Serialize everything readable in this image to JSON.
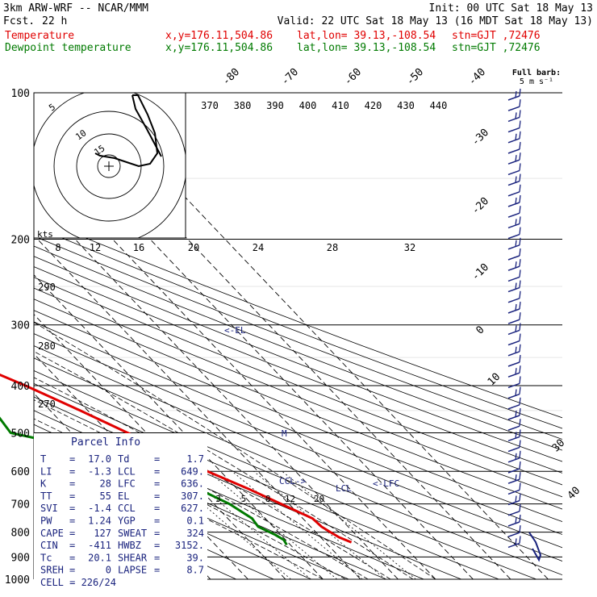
{
  "header": {
    "model": "3km ARW-WRF -- NCAR/MMM",
    "init": "Init: 00 UTC Sat 18 May 13",
    "fcst_label": "Fcst.",
    "fcst_hours": "22 h",
    "valid": "Valid: 22 UTC Sat 18 May 13 (16 MDT Sat 18 May 13)",
    "series1_label": "Temperature",
    "series2_label": "Dewpoint temperature",
    "xy": "x,y=176.11,504.86",
    "latlon": "lat,lon= 39.13,-108.54",
    "stn": "stn=GJT ,72476"
  },
  "barb_legend": {
    "line1": "Full barb:",
    "line2": "5 m s⁻¹"
  },
  "hodograph": {
    "kts": "kts",
    "ring_labels": [
      "5",
      "10",
      "15"
    ]
  },
  "parcel_info": {
    "title": "Parcel Info",
    "rows": [
      {
        "l": "T",
        "lv": "17.0",
        "r": "Td",
        "rv": "1.7"
      },
      {
        "l": "LI",
        "lv": "-1.3",
        "r": "LCL",
        "rv": "649."
      },
      {
        "l": "K",
        "lv": "28",
        "r": "LFC",
        "rv": "636."
      },
      {
        "l": "TT",
        "lv": "55",
        "r": "EL",
        "rv": "307."
      },
      {
        "l": "SVI",
        "lv": "-1.4",
        "r": "CCL",
        "rv": "627."
      },
      {
        "l": "PW",
        "lv": "1.24",
        "r": "YGP",
        "rv": "0.1"
      },
      {
        "l": "CAPE",
        "lv": "127",
        "r": "SWEAT",
        "rv": "324"
      },
      {
        "l": "CIN",
        "lv": "-411",
        "r": "HWBZ",
        "rv": "3152."
      },
      {
        "l": "Tc",
        "lv": "20.1",
        "r": "SHEAR",
        "rv": "39."
      },
      {
        "l": "SREH",
        "lv": "0",
        "r": "LAPSE",
        "rv": "8.7"
      }
    ],
    "cell": "CELL = 226/24"
  },
  "levels": {
    "el": "<-EL",
    "lfc": "<-LFC",
    "lcl": "LCL",
    "ccl": "CCL->",
    "m": "M"
  },
  "chart_data": {
    "type": "line",
    "title": "3km ARW-WRF -- NCAR/MMM",
    "ylabel": "",
    "xlabel": "",
    "y_scale": "log-pressure",
    "ylim": [
      1000,
      100
    ],
    "pressure_ticks": [
      "100",
      "200",
      "300",
      "400",
      "500",
      "600",
      "700",
      "800",
      "900",
      "1000"
    ],
    "isotherm_labels": [
      "-80",
      "-70",
      "-60",
      "-50",
      "-40",
      "-30",
      "-20",
      "-10",
      "0",
      "10",
      "30",
      "40"
    ],
    "theta_labels": [
      "370",
      "380",
      "390",
      "400",
      "410",
      "420",
      "430",
      "440"
    ],
    "theta_left_labels": [
      "290",
      "280",
      "270"
    ],
    "wind_speed_labels": [
      "8",
      "12",
      "16",
      "20",
      "24",
      "28",
      "32"
    ],
    "mixing_ratio_labels": [
      "2",
      "3",
      "5",
      "8",
      "12",
      "20"
    ],
    "series": [
      {
        "name": "Temperature",
        "color": "#e00000",
        "points": [
          [
            100,
            -50.2
          ],
          [
            110,
            -49.4
          ],
          [
            125,
            -47.4
          ],
          [
            140,
            -46.4
          ],
          [
            155,
            -46.8
          ],
          [
            170,
            -48.9
          ],
          [
            185,
            -51.8
          ],
          [
            200,
            -54.2
          ],
          [
            220,
            -57.2
          ],
          [
            240,
            -58.4
          ],
          [
            260,
            -58.3
          ],
          [
            280,
            -54.7
          ],
          [
            300,
            -52.0
          ],
          [
            320,
            -47.8
          ],
          [
            340,
            -43.1
          ],
          [
            370,
            -36.5
          ],
          [
            400,
            -30.3
          ],
          [
            450,
            -22.0
          ],
          [
            500,
            -15.0
          ],
          [
            550,
            -9.0
          ],
          [
            600,
            -3.5
          ],
          [
            650,
            2.8
          ],
          [
            700,
            7.9
          ],
          [
            750,
            12.6
          ],
          [
            780,
            12.9
          ],
          [
            800,
            13.9
          ],
          [
            820,
            14.9
          ],
          [
            840,
            16.9
          ]
        ]
      },
      {
        "name": "Dewpoint temperature",
        "color": "#007a00",
        "points": [
          [
            100,
            -79.3
          ],
          [
            120,
            -73.9
          ],
          [
            140,
            -72.4
          ],
          [
            160,
            -74.3
          ],
          [
            180,
            -76.4
          ],
          [
            200,
            -78.3
          ],
          [
            210,
            -78.5
          ],
          [
            230,
            -73.4
          ],
          [
            260,
            -64.7
          ],
          [
            300,
            -60.3
          ],
          [
            340,
            -51.7
          ],
          [
            380,
            -41.7
          ],
          [
            400,
            -41.7
          ],
          [
            450,
            -45.0
          ],
          [
            500,
            -46.2
          ],
          [
            550,
            -26.5
          ],
          [
            580,
            -18.2
          ],
          [
            600,
            -12.2
          ],
          [
            650,
            -10.6
          ],
          [
            700,
            -5.9
          ],
          [
            750,
            -3.5
          ],
          [
            780,
            -4.0
          ],
          [
            810,
            -1.5
          ],
          [
            830,
            -0.5
          ],
          [
            850,
            -1.0
          ]
        ]
      }
    ]
  }
}
